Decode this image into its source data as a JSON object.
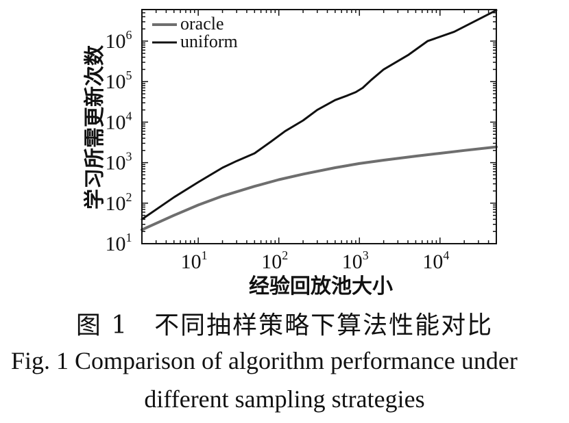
{
  "chart_data": {
    "type": "line",
    "xlabel": "经验回放池大小",
    "ylabel": "学习所需更新次数",
    "x_scale": "log",
    "y_scale": "log",
    "xlim": [
      2,
      50000
    ],
    "ylim": [
      10,
      6000000
    ],
    "x_ticks": [
      10,
      100,
      1000,
      10000
    ],
    "y_ticks": [
      10,
      100,
      1000,
      10000,
      100000,
      1000000
    ],
    "grid": false,
    "legend_position": "top-left",
    "series": [
      {
        "name": "oracle",
        "color": "#6e6e6e",
        "x": [
          2,
          5,
          10,
          20,
          50,
          100,
          200,
          500,
          1000,
          2000,
          5000,
          10000,
          20000,
          50000
        ],
        "y": [
          22,
          50,
          90,
          150,
          260,
          380,
          520,
          750,
          950,
          1150,
          1450,
          1700,
          2000,
          2450
        ]
      },
      {
        "name": "uniform",
        "color": "#111111",
        "x": [
          2,
          5,
          10,
          20,
          30,
          50,
          80,
          120,
          200,
          300,
          500,
          700,
          900,
          1100,
          1400,
          2000,
          4000,
          7000,
          15000,
          50000
        ],
        "y": [
          40,
          140,
          330,
          750,
          1100,
          1700,
          3300,
          6000,
          11000,
          20000,
          35000,
          45000,
          55000,
          70000,
          110000,
          200000,
          450000,
          1000000,
          1700000,
          5800000
        ]
      }
    ]
  },
  "captions": {
    "cn": "图 1　不同抽样策略下算法性能对比",
    "en_line1": "Fig.  1    Comparison of algorithm performance under",
    "en_line2": "different sampling strategies"
  }
}
